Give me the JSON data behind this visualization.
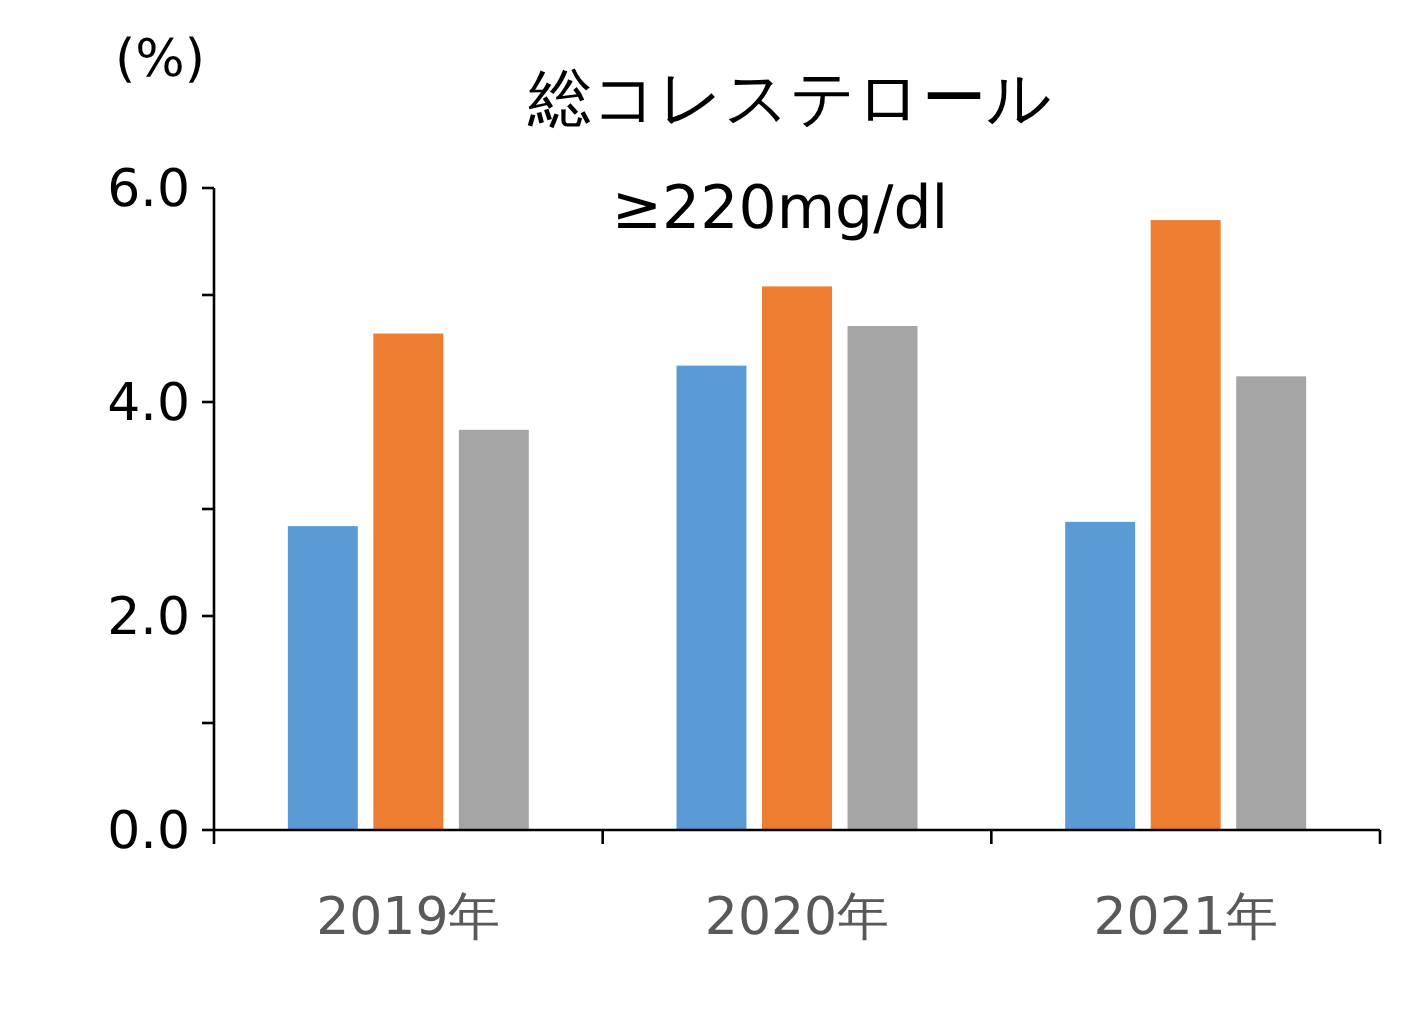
{
  "chart_data": {
    "type": "bar",
    "title": "総コレステロール",
    "subtitle": "≥220mg/dl",
    "ylabel": "(%)",
    "categories": [
      "2019年",
      "2020年",
      "2021年"
    ],
    "series": [
      {
        "color": "#5b9bd5",
        "values": [
          2.84,
          4.34,
          2.88
        ]
      },
      {
        "color": "#ed7d31",
        "values": [
          4.64,
          5.08,
          5.7
        ]
      },
      {
        "color": "#a5a5a5",
        "values": [
          3.74,
          4.71,
          4.24
        ]
      }
    ],
    "ylim": [
      0,
      6
    ],
    "yticks": [
      {
        "value": 0,
        "label": "0.0"
      },
      {
        "value": 1,
        "label": null
      },
      {
        "value": 2,
        "label": "2.0"
      },
      {
        "value": 3,
        "label": null
      },
      {
        "value": 4,
        "label": "4.0"
      },
      {
        "value": 5,
        "label": null
      },
      {
        "value": 6,
        "label": "6.0"
      }
    ],
    "grid": false
  }
}
